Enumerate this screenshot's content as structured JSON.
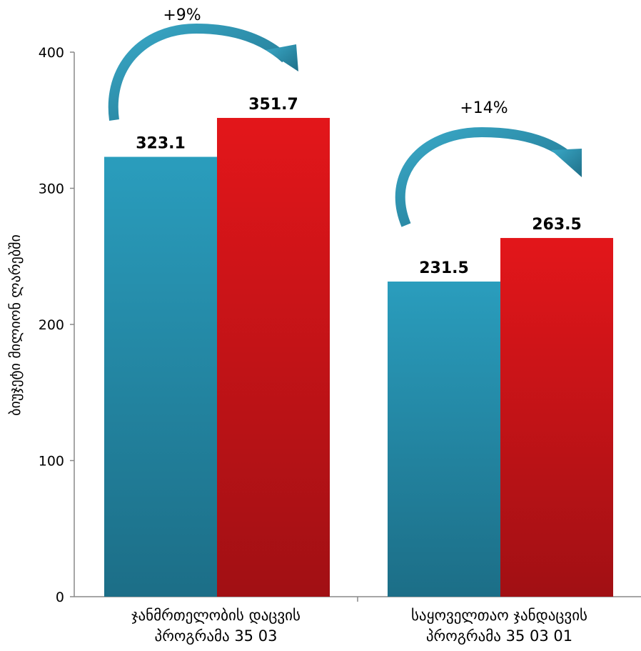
{
  "chart_data": {
    "type": "bar",
    "title": "",
    "ylabel": "ბიუჯეტი მილიონ ლარებში",
    "xlabel": "",
    "ylim": [
      0,
      400
    ],
    "yticks": [
      0,
      100,
      200,
      300,
      400
    ],
    "grid": false,
    "legend": "none",
    "categories": [
      [
        "ჯანმრთელობის დაცვის",
        "პროგრამა 35 03"
      ],
      [
        "საყოველთაო ჯანდაცვის",
        "პროგრამა 35 03 01"
      ]
    ],
    "series": [
      {
        "values": [
          323.1,
          231.5
        ],
        "data_labels": [
          "323.1",
          "231.5"
        ]
      },
      {
        "values": [
          351.7,
          263.5
        ],
        "data_labels": [
          "351.7",
          "263.5"
        ]
      }
    ],
    "annotations": [
      "+9%",
      "+14%"
    ]
  },
  "colors": {
    "series_0_light": "#2a9dbd",
    "series_0_dark": "#1c6e87",
    "series_1_light": "#e3161a",
    "series_1_dark": "#a11014",
    "arrow": "#2b8fae",
    "axis": "#888888"
  }
}
